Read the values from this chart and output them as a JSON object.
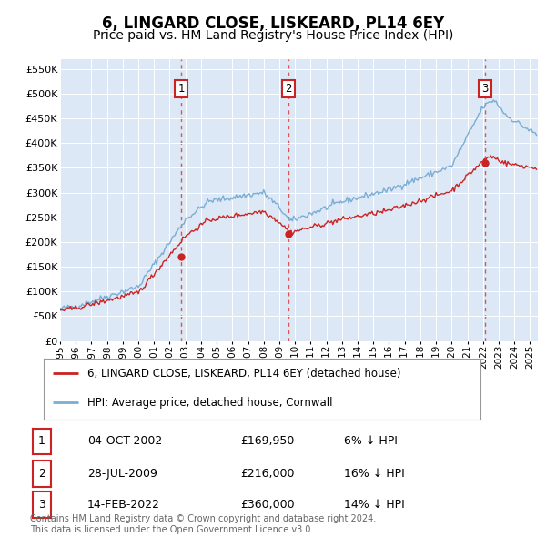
{
  "title": "6, LINGARD CLOSE, LISKEARD, PL14 6EY",
  "subtitle": "Price paid vs. HM Land Registry's House Price Index (HPI)",
  "ylabel_ticks": [
    "£0",
    "£50K",
    "£100K",
    "£150K",
    "£200K",
    "£250K",
    "£300K",
    "£350K",
    "£400K",
    "£450K",
    "£500K",
    "£550K"
  ],
  "ytick_values": [
    0,
    50000,
    100000,
    150000,
    200000,
    250000,
    300000,
    350000,
    400000,
    450000,
    500000,
    550000
  ],
  "ylim": [
    0,
    570000
  ],
  "xlim_start": 1995.0,
  "xlim_end": 2025.5,
  "sale_dates": [
    2002.75,
    2009.58,
    2022.12
  ],
  "sale_prices": [
    169950,
    216000,
    360000
  ],
  "sale_labels": [
    "1",
    "2",
    "3"
  ],
  "sale_date_strs": [
    "04-OCT-2002",
    "28-JUL-2009",
    "14-FEB-2022"
  ],
  "sale_price_strs": [
    "£169,950",
    "£216,000",
    "£360,000"
  ],
  "sale_hpi_strs": [
    "6% ↓ HPI",
    "16% ↓ HPI",
    "14% ↓ HPI"
  ],
  "hpi_line_color": "#7aadd4",
  "price_line_color": "#cc2222",
  "sale_vline_color": "#dd4444",
  "bg_color": "#ffffff",
  "plot_bg_color": "#dce8f5",
  "legend_label_price": "6, LINGARD CLOSE, LISKEARD, PL14 6EY (detached house)",
  "legend_label_hpi": "HPI: Average price, detached house, Cornwall",
  "footer": "Contains HM Land Registry data © Crown copyright and database right 2024.\nThis data is licensed under the Open Government Licence v3.0.",
  "title_fontsize": 12,
  "subtitle_fontsize": 10
}
